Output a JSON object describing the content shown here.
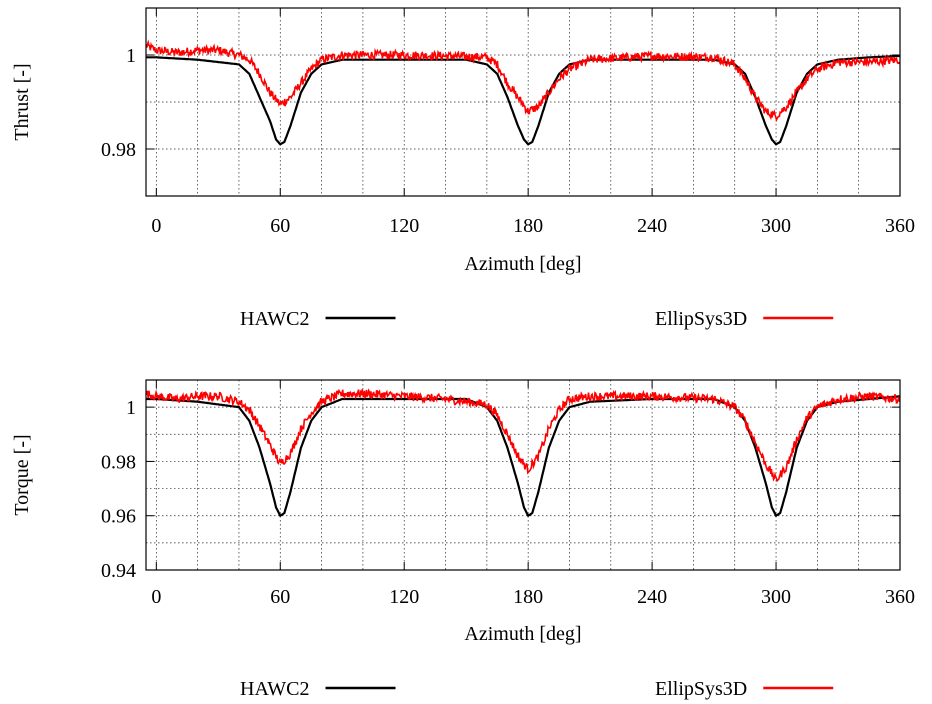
{
  "colors": {
    "hawc2": "#000000",
    "ellipsys3d": "#ff0000"
  },
  "chart_data": [
    {
      "type": "line",
      "title": "",
      "xlabel": "Azimuth [deg]",
      "ylabel": "Thrust [-]",
      "xlim": [
        -5,
        360
      ],
      "ylim": [
        0.97,
        1.01
      ],
      "xticks": [
        0,
        60,
        120,
        180,
        240,
        300,
        360
      ],
      "yticks": [
        0.98,
        1
      ],
      "ytick_labels": [
        "0.98",
        "1"
      ],
      "xtick_labels": [
        "0",
        "60",
        "120",
        "180",
        "240",
        "300",
        "360"
      ],
      "grid": true,
      "legend_position": "below",
      "series": [
        {
          "name": "HAWC2",
          "x": [
            -5,
            0,
            20,
            40,
            45,
            50,
            55,
            58,
            60,
            62,
            65,
            70,
            75,
            80,
            90,
            100,
            120,
            150,
            160,
            165,
            170,
            175,
            178,
            180,
            182,
            185,
            190,
            195,
            200,
            210,
            240,
            270,
            280,
            285,
            290,
            295,
            298,
            300,
            302,
            305,
            310,
            315,
            320,
            330,
            345,
            360
          ],
          "y": [
            0.9995,
            0.9995,
            0.999,
            0.998,
            0.996,
            0.991,
            0.986,
            0.982,
            0.981,
            0.9815,
            0.985,
            0.992,
            0.996,
            0.998,
            0.999,
            0.999,
            0.999,
            0.999,
            0.998,
            0.996,
            0.991,
            0.985,
            0.982,
            0.981,
            0.9815,
            0.985,
            0.992,
            0.996,
            0.998,
            0.999,
            0.999,
            0.999,
            0.998,
            0.996,
            0.991,
            0.985,
            0.982,
            0.981,
            0.9815,
            0.985,
            0.992,
            0.996,
            0.998,
            0.999,
            0.9995,
            0.9998
          ]
        },
        {
          "name": "EllipSys3D",
          "x": [
            -5,
            0,
            10,
            20,
            30,
            40,
            45,
            50,
            55,
            60,
            65,
            70,
            75,
            80,
            90,
            100,
            120,
            140,
            160,
            165,
            170,
            175,
            180,
            185,
            190,
            195,
            200,
            210,
            240,
            270,
            280,
            285,
            290,
            295,
            300,
            305,
            310,
            315,
            320,
            330,
            345,
            360
          ],
          "y": [
            1.002,
            1.001,
            1.0005,
            1.001,
            1.001,
            1.0,
            0.999,
            0.996,
            0.992,
            0.9895,
            0.991,
            0.994,
            0.997,
            0.999,
            1.0,
            1.0,
            1.0,
            0.9998,
            0.9995,
            0.998,
            0.994,
            0.991,
            0.988,
            0.989,
            0.992,
            0.995,
            0.997,
            0.999,
            0.9998,
            0.9995,
            0.998,
            0.995,
            0.991,
            0.988,
            0.987,
            0.989,
            0.992,
            0.995,
            0.997,
            0.9985,
            0.9985,
            0.999
          ]
        }
      ]
    },
    {
      "type": "line",
      "title": "",
      "xlabel": "Azimuth [deg]",
      "ylabel": "Torque [-]",
      "xlim": [
        -5,
        360
      ],
      "ylim": [
        0.94,
        1.01
      ],
      "xticks": [
        0,
        60,
        120,
        180,
        240,
        300,
        360
      ],
      "yticks": [
        0.94,
        0.96,
        0.98,
        1
      ],
      "ytick_labels": [
        "0.94",
        "0.96",
        "0.98",
        "1"
      ],
      "xtick_labels": [
        "0",
        "60",
        "120",
        "180",
        "240",
        "300",
        "360"
      ],
      "grid": true,
      "legend_position": "below",
      "series": [
        {
          "name": "HAWC2",
          "x": [
            -5,
            0,
            20,
            40,
            45,
            50,
            55,
            58,
            60,
            62,
            65,
            70,
            75,
            80,
            90,
            100,
            120,
            150,
            160,
            165,
            170,
            175,
            178,
            180,
            182,
            185,
            190,
            195,
            200,
            210,
            240,
            270,
            280,
            285,
            290,
            295,
            298,
            300,
            302,
            305,
            310,
            315,
            320,
            330,
            345,
            360
          ],
          "y": [
            1.003,
            1.003,
            1.002,
            1.0,
            0.995,
            0.985,
            0.972,
            0.963,
            0.96,
            0.961,
            0.969,
            0.985,
            0.995,
            1.0,
            1.003,
            1.003,
            1.003,
            1.003,
            1.0,
            0.995,
            0.985,
            0.972,
            0.963,
            0.96,
            0.961,
            0.969,
            0.985,
            0.995,
            1.0,
            1.002,
            1.003,
            1.003,
            1.0,
            0.995,
            0.985,
            0.972,
            0.963,
            0.96,
            0.961,
            0.969,
            0.985,
            0.995,
            1.0,
            1.002,
            1.003,
            1.004
          ]
        },
        {
          "name": "EllipSys3D",
          "x": [
            -5,
            0,
            10,
            20,
            30,
            40,
            45,
            50,
            55,
            60,
            65,
            70,
            75,
            80,
            90,
            100,
            120,
            140,
            160,
            165,
            170,
            175,
            180,
            185,
            190,
            195,
            200,
            210,
            240,
            270,
            280,
            285,
            290,
            295,
            300,
            305,
            310,
            315,
            320,
            330,
            345,
            360
          ],
          "y": [
            1.005,
            1.004,
            1.003,
            1.004,
            1.004,
            1.002,
            0.999,
            0.993,
            0.986,
            0.979,
            0.983,
            0.992,
            0.998,
            1.002,
            1.005,
            1.005,
            1.004,
            1.003,
            1.001,
            0.997,
            0.99,
            0.982,
            0.977,
            0.982,
            0.992,
            0.999,
            1.003,
            1.004,
            1.004,
            1.003,
            1.0,
            0.995,
            0.987,
            0.979,
            0.973,
            0.978,
            0.988,
            0.996,
            1.0,
            1.003,
            1.004,
            1.003
          ]
        }
      ]
    }
  ]
}
